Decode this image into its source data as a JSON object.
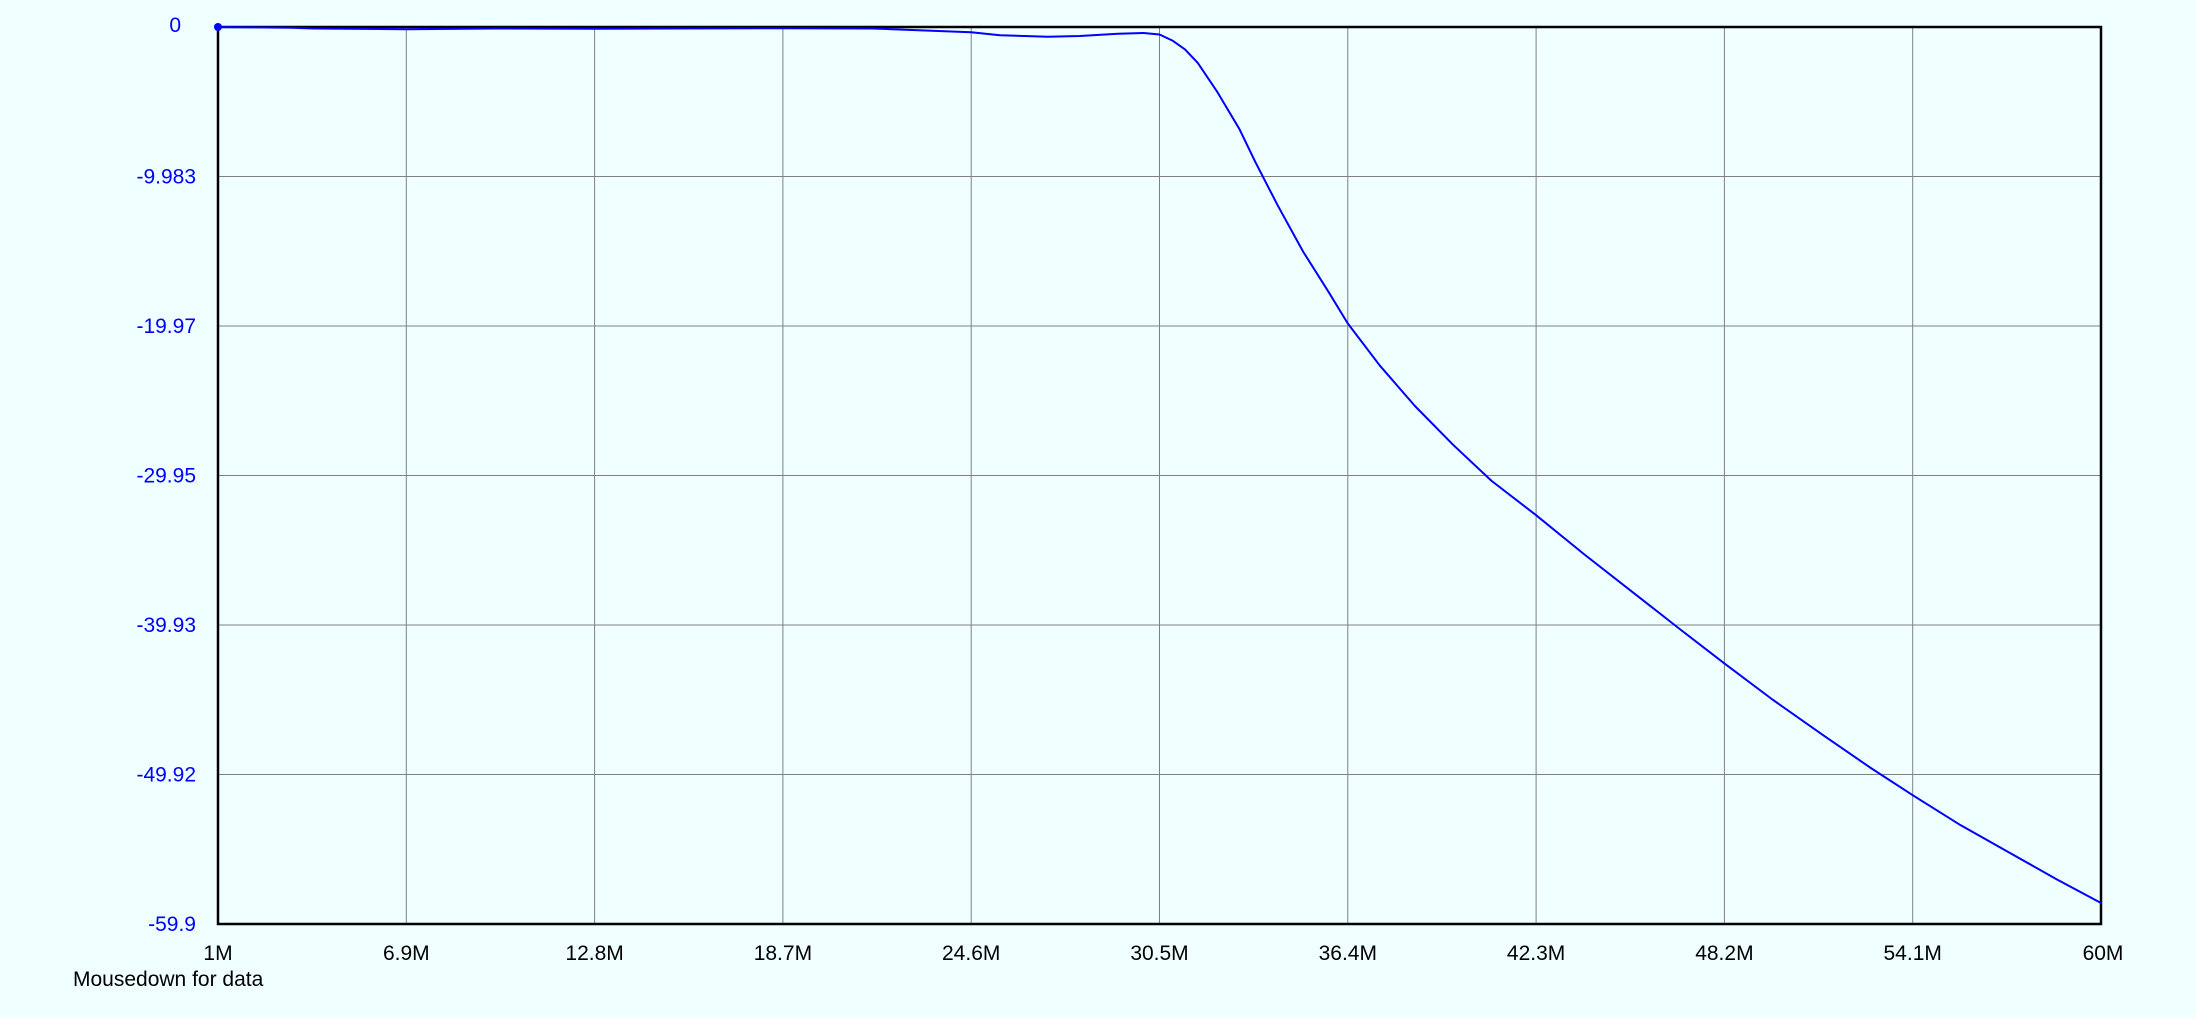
{
  "status": {
    "text": "Mousedown for data"
  },
  "colors": {
    "background": "#f0ffff",
    "series": "#0000ff",
    "grid": "#808080",
    "frame": "#000000",
    "ytick_text": "#0000ff",
    "xtick_text": "#000000"
  },
  "chart_data": {
    "type": "line",
    "title": "",
    "xlabel": "",
    "ylabel": "",
    "grid": true,
    "legend": "none",
    "xlim": [
      1000000,
      60000000
    ],
    "ylim": [
      -59.9,
      0
    ],
    "x_ticks": [
      1000000,
      6900000,
      12800000,
      18700000,
      24600000,
      30500000,
      36400000,
      42300000,
      48200000,
      54100000,
      60000000
    ],
    "x_tick_labels": [
      "1M",
      "6.9M",
      "12.8M",
      "18.7M",
      "24.6M",
      "30.5M",
      "36.4M",
      "42.3M",
      "48.2M",
      "54.1M",
      "60M"
    ],
    "y_ticks": [
      0,
      -9.983,
      -19.97,
      -29.95,
      -39.93,
      -49.92,
      -59.9
    ],
    "y_tick_labels": [
      "0",
      "-9.983",
      "-19.97",
      "-29.95",
      "-39.93",
      "-49.92",
      "-59.9"
    ],
    "marker": {
      "x": 1000000,
      "y": 0
    },
    "series": [
      {
        "x": [
          1000000,
          3300000,
          4000000,
          6900000,
          9600000,
          12800000,
          15000000,
          18700000,
          21500000,
          24600000,
          25500000,
          27000000,
          28000000,
          29200000,
          30000000,
          30500000,
          30900000,
          31300000,
          31700000,
          32300000,
          33000000,
          33500000,
          34200000,
          35000000,
          35800000,
          36400000,
          37400000,
          38500000,
          39700000,
          40900000,
          42300000,
          43800000,
          45300000,
          46800000,
          48200000,
          49700000,
          51300000,
          52800000,
          54100000,
          55600000,
          57100000,
          58600000,
          60000000
        ],
        "y": [
          0,
          -0.05,
          -0.1,
          -0.15,
          -0.1,
          -0.12,
          -0.1,
          -0.08,
          -0.1,
          -0.35,
          -0.55,
          -0.65,
          -0.6,
          -0.45,
          -0.4,
          -0.5,
          -0.9,
          -1.5,
          -2.4,
          -4.3,
          -6.8,
          -9.0,
          -11.9,
          -15.0,
          -17.7,
          -19.8,
          -22.6,
          -25.3,
          -27.9,
          -30.3,
          -32.6,
          -35.2,
          -37.7,
          -40.2,
          -42.5,
          -44.9,
          -47.3,
          -49.5,
          -51.3,
          -53.3,
          -55.1,
          -56.9,
          -58.5
        ]
      }
    ]
  }
}
